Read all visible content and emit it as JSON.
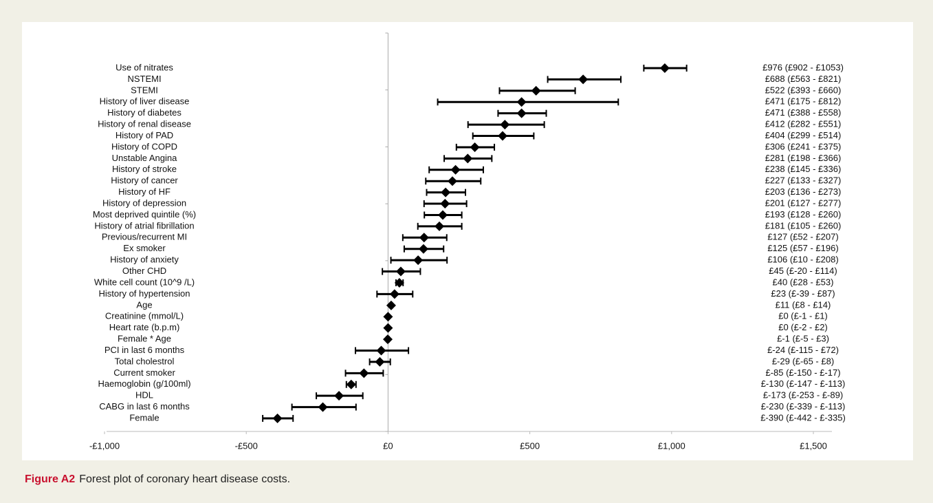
{
  "chart_data": {
    "type": "forest",
    "categories": [
      "Use of nitrates",
      "NSTEMI",
      "STEMI",
      "History of liver disease",
      "History of diabetes",
      "History of renal disease",
      "History of PAD",
      "History of COPD",
      "Unstable Angina",
      "History of stroke",
      "History of cancer",
      "History of HF",
      "History of depression",
      "Most deprived quintile (%)",
      "History of atrial fibrillation",
      "Previous/recurrent MI",
      "Ex smoker",
      "History of anxiety",
      "Other CHD",
      "White cell count (10^9 /L)",
      "History of hypertension",
      "Age",
      "Creatinine (mmol/L)",
      "Heart rate (b.p.m)",
      "Female * Age",
      "PCI in last 6 months",
      "Total cholestrol",
      "Current smoker",
      "Haemoglobin (g/100ml)",
      "HDL",
      "CABG in last 6 months",
      "Female"
    ],
    "values": [
      976,
      688,
      522,
      471,
      471,
      412,
      404,
      306,
      281,
      238,
      227,
      203,
      201,
      193,
      181,
      127,
      125,
      106,
      45,
      40,
      23,
      11,
      0,
      0,
      -1,
      -24,
      -29,
      -85,
      -130,
      -173,
      -230,
      -390
    ],
    "lower": [
      902,
      563,
      393,
      175,
      388,
      282,
      299,
      241,
      198,
      145,
      133,
      136,
      127,
      128,
      105,
      52,
      57,
      10,
      -20,
      28,
      -39,
      8,
      -1,
      -2,
      -5,
      -115,
      -65,
      -150,
      -147,
      -253,
      -339,
      -442
    ],
    "upper": [
      1053,
      821,
      660,
      812,
      558,
      551,
      514,
      375,
      366,
      336,
      327,
      273,
      277,
      260,
      260,
      207,
      196,
      208,
      114,
      53,
      87,
      14,
      1,
      2,
      3,
      72,
      8,
      -17,
      -113,
      -89,
      -113,
      -335
    ],
    "value_labels": [
      "£976 (£902 - £1053)",
      "£688 (£563 - £821)",
      "£522 (£393 - £660)",
      "£471 (£175 - £812)",
      "£471 (£388 - £558)",
      "£412 (£282 - £551)",
      "£404 (£299 - £514)",
      "£306 (£241 - £375)",
      "£281 (£198 - £366)",
      "£238 (£145 - £336)",
      "£227 (£133 - £327)",
      "£203 (£136 - £273)",
      "£201 (£127 - £277)",
      "£193 (£128 - £260)",
      "£181 (£105 - £260)",
      "£127 (£52 - £207)",
      "£125 (£57 - £196)",
      "£106 (£10 - £208)",
      "£45 (£-20 - £114)",
      "£40 (£28 - £53)",
      "£23 (£-39 - £87)",
      "£11 (£8 - £14)",
      "£0 (£-1 - £1)",
      "£0 (£-2 - £2)",
      "£-1 (£-5 - £3)",
      "£-24 (£-115 - £72)",
      "£-29 (£-65 - £8)",
      "£-85 (£-150 - £-17)",
      "£-130 (£-147 - £-113)",
      "£-173 (£-253 - £-89)",
      "£-230 (£-339 - £-113)",
      "£-390 (£-442 - £-335)"
    ],
    "color": "#000000",
    "xlim": [
      -1000,
      1500
    ],
    "xticks": [
      {
        "value": -1000,
        "label": "-£1,000"
      },
      {
        "value": -500,
        "label": "-£500"
      },
      {
        "value": 0,
        "label": "£0"
      },
      {
        "value": 500,
        "label": "£500"
      },
      {
        "value": 1000,
        "label": "£1,000"
      },
      {
        "value": 1500,
        "label": "£1,500"
      }
    ]
  },
  "figure": {
    "label": "Figure A2",
    "caption": "Forest plot of coronary heart disease costs."
  }
}
